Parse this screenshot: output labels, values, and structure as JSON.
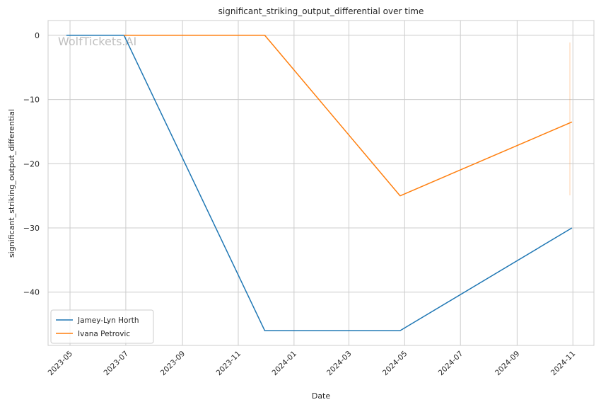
{
  "chart_data": {
    "type": "line",
    "title": "significant_striking_output_differential over time",
    "xlabel": "Date",
    "ylabel": "significant_striking_output_differential",
    "watermark": "WolfTickets.AI",
    "x_tick_labels": [
      "2023-05",
      "2023-07",
      "2023-09",
      "2023-11",
      "2024-01",
      "2024-03",
      "2024-05",
      "2024-07",
      "2024-09",
      "2024-11"
    ],
    "x_tick_dates": [
      "2023-05-01",
      "2023-07-01",
      "2023-09-01",
      "2023-11-01",
      "2024-01-01",
      "2024-03-01",
      "2024-05-01",
      "2024-07-01",
      "2024-09-01",
      "2024-11-01"
    ],
    "xlim": [
      "2023-04-07",
      "2024-11-24"
    ],
    "ylim": [
      -48.3,
      2.3
    ],
    "y_ticks": [
      0,
      -10,
      -20,
      -30,
      -40
    ],
    "y_tick_labels": [
      "0",
      "−10",
      "−20",
      "−30",
      "−40"
    ],
    "grid": true,
    "legend_position": "lower-left",
    "series": [
      {
        "name": "Jamey-Lyn Horth",
        "color": "#1f77b4",
        "points": [
          {
            "x": "2023-04-27",
            "y": 0
          },
          {
            "x": "2023-06-29",
            "y": 0
          },
          {
            "x": "2023-11-30",
            "y": -46
          },
          {
            "x": "2024-04-26",
            "y": -46
          },
          {
            "x": "2024-10-31",
            "y": -30
          }
        ]
      },
      {
        "name": "Ivana Petrovic",
        "color": "#ff7f0e",
        "points": [
          {
            "x": "2023-06-29",
            "y": 0
          },
          {
            "x": "2023-11-30",
            "y": 0
          },
          {
            "x": "2024-04-26",
            "y": -25
          },
          {
            "x": "2024-10-31",
            "y": -13.5
          }
        ]
      }
    ]
  }
}
